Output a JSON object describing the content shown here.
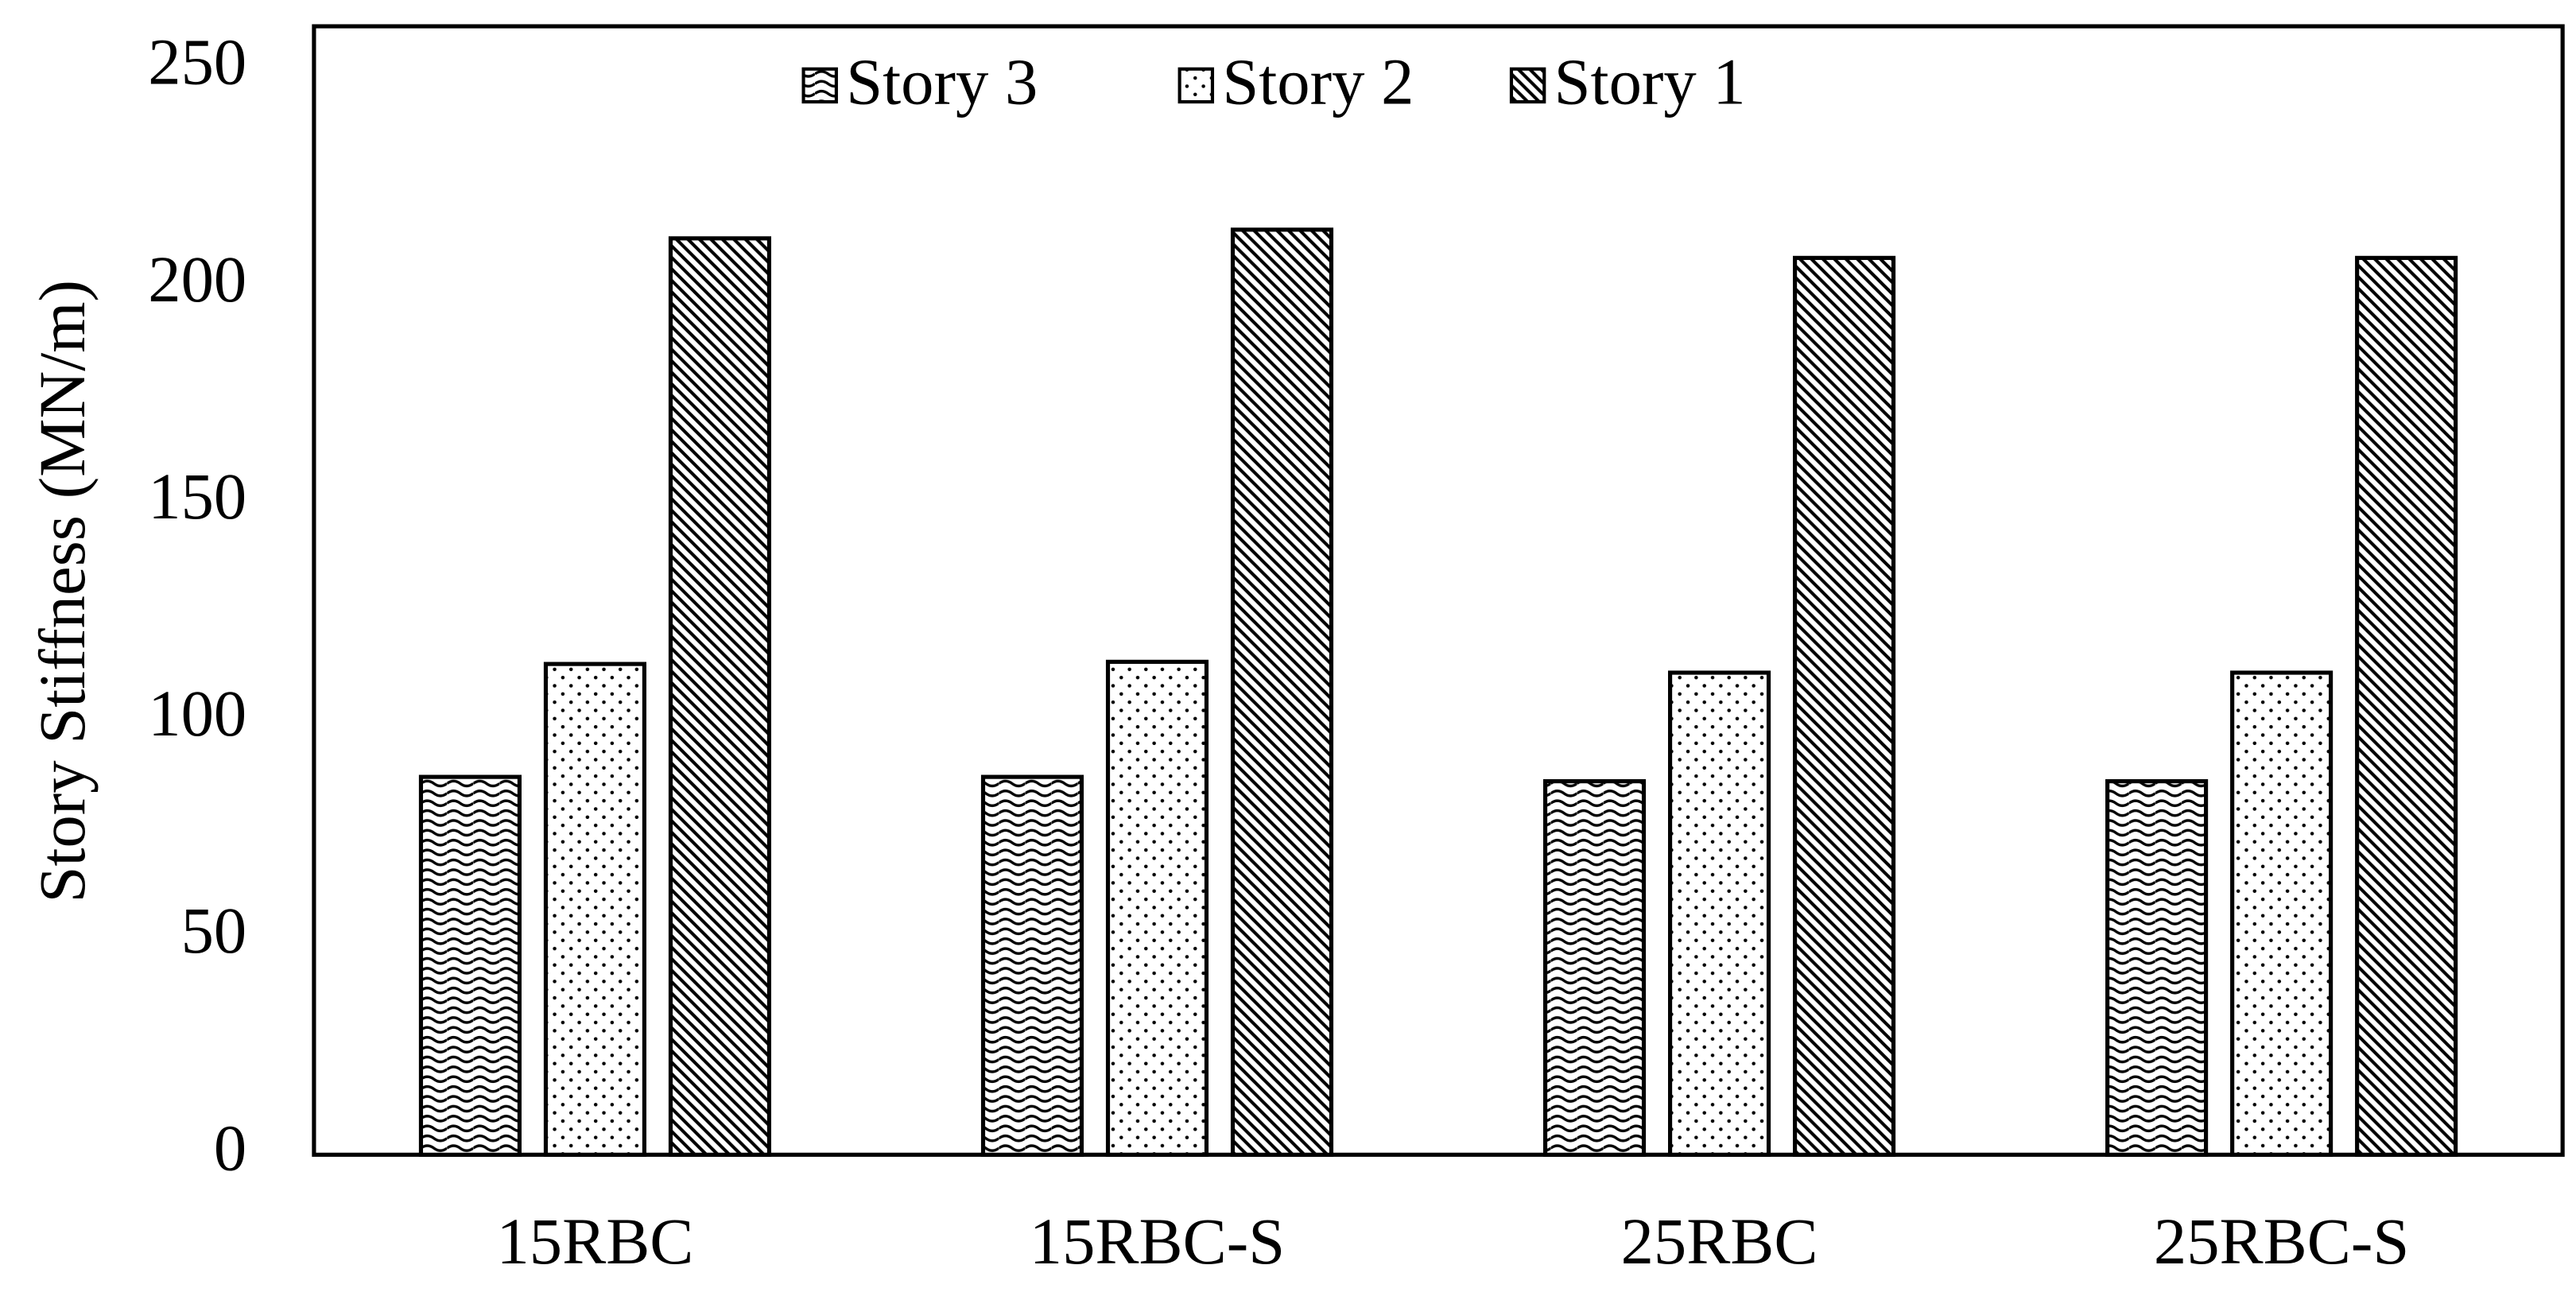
{
  "chart_data": {
    "type": "bar",
    "y_label": "Story Stiffness (MN/m)",
    "categories": [
      "15RBC",
      "15RBC-S",
      "25RBC",
      "25RBC-S"
    ],
    "series": [
      {
        "name": "Story 3",
        "color": "#000000",
        "pattern": "wave",
        "values": [
          87,
          87,
          86,
          86
        ]
      },
      {
        "name": "Story 2",
        "color": "#000000",
        "pattern": "dots",
        "values": [
          113,
          113.5,
          111,
          111
        ]
      },
      {
        "name": "Story 1",
        "color": "#000000",
        "pattern": "diagonal",
        "values": [
          211,
          213,
          206.5,
          206.5
        ]
      }
    ],
    "ylim": [
      0,
      250
    ],
    "yticks": [
      0,
      50,
      100,
      150,
      200,
      250
    ],
    "legend": "top",
    "grid": false
  }
}
